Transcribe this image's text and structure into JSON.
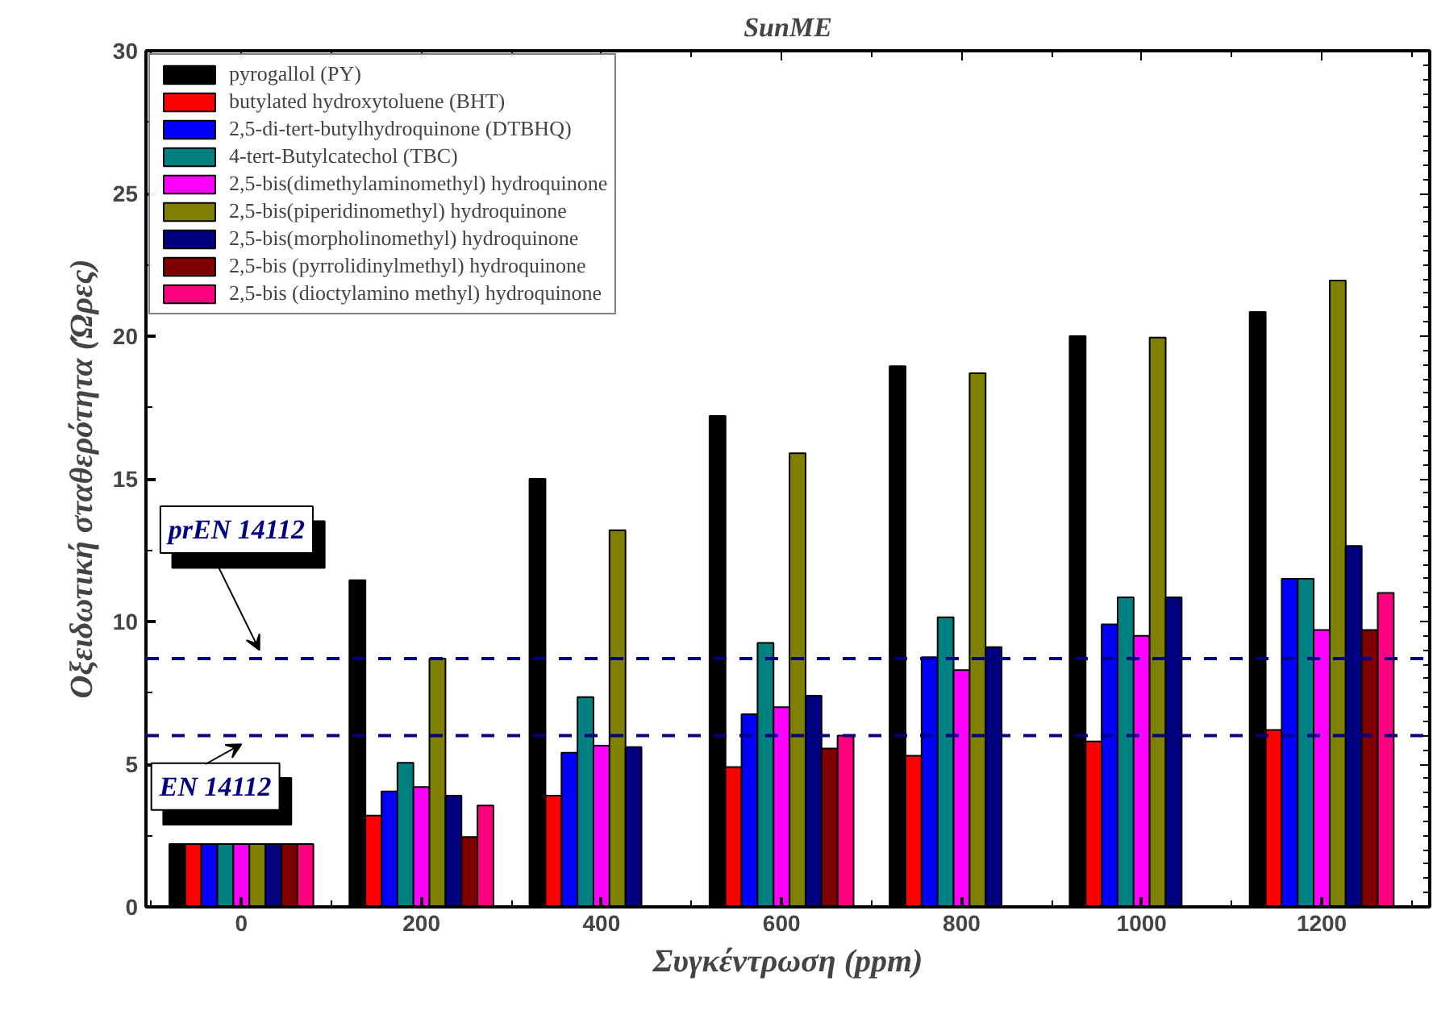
{
  "chart_data": {
    "type": "bar",
    "title": "SunME",
    "xlabel": "Συγκέντρωση (ppm)",
    "ylabel": "Οξειδωτική σταθερότητα (Ώρες)",
    "categories": [
      "0",
      "200",
      "400",
      "600",
      "800",
      "1000",
      "1200"
    ],
    "ylim": [
      0,
      30
    ],
    "yticks": [
      0,
      5,
      10,
      15,
      20,
      25,
      30
    ],
    "grid": false,
    "legend": "top left",
    "series": [
      {
        "name": "pyrogallol (PY)",
        "color": "#000000",
        "values": [
          2.2,
          11.45,
          15.0,
          17.2,
          18.95,
          20.0,
          20.85
        ]
      },
      {
        "name": "butylated hydroxytoluene (BHT)",
        "color": "#ff0000",
        "values": [
          2.2,
          3.2,
          3.9,
          4.9,
          5.3,
          5.8,
          6.2
        ]
      },
      {
        "name": "2,5-di-tert-butylhydroquinone (DTBHQ)",
        "color": "#0000ff",
        "values": [
          2.2,
          4.05,
          5.4,
          6.75,
          8.75,
          9.9,
          11.5
        ]
      },
      {
        "name": "4-tert-Butylcatechol (TBC)",
        "color": "#008080",
        "values": [
          2.2,
          5.05,
          7.35,
          9.25,
          10.15,
          10.85,
          11.5
        ]
      },
      {
        "name": "2,5-bis(dimethylaminomethyl) hydroquinone",
        "color": "#ff00ff",
        "values": [
          2.2,
          4.2,
          5.65,
          7.0,
          8.3,
          9.5,
          9.7
        ]
      },
      {
        "name": "2,5-bis(piperidinomethyl) hydroquinone",
        "color": "#808000",
        "values": [
          2.2,
          8.7,
          13.2,
          15.9,
          18.7,
          19.95,
          21.95
        ]
      },
      {
        "name": "2,5-bis(morpholinomethyl) hydroquinone",
        "color": "#000080",
        "values": [
          2.2,
          3.9,
          5.6,
          7.4,
          9.1,
          10.85,
          12.65
        ]
      },
      {
        "name": "2,5-bis (pyrrolidinylmethyl) hydroquinone",
        "color": "#800000",
        "values": [
          2.2,
          2.45,
          null,
          5.55,
          null,
          null,
          9.7
        ]
      },
      {
        "name": "2,5-bis (dioctylamino methyl) hydroquinone",
        "color": "#ff0080",
        "values": [
          2.2,
          3.55,
          null,
          6.0,
          null,
          null,
          11.0
        ]
      }
    ],
    "ref_lines": [
      {
        "axis": "y",
        "value": 8.7,
        "label": "prEN 14112",
        "color": "#000080",
        "line_style": "dashed"
      },
      {
        "axis": "y",
        "value": 6.0,
        "label": "EN 14112",
        "color": "#000080",
        "line_style": "dashed"
      }
    ]
  }
}
